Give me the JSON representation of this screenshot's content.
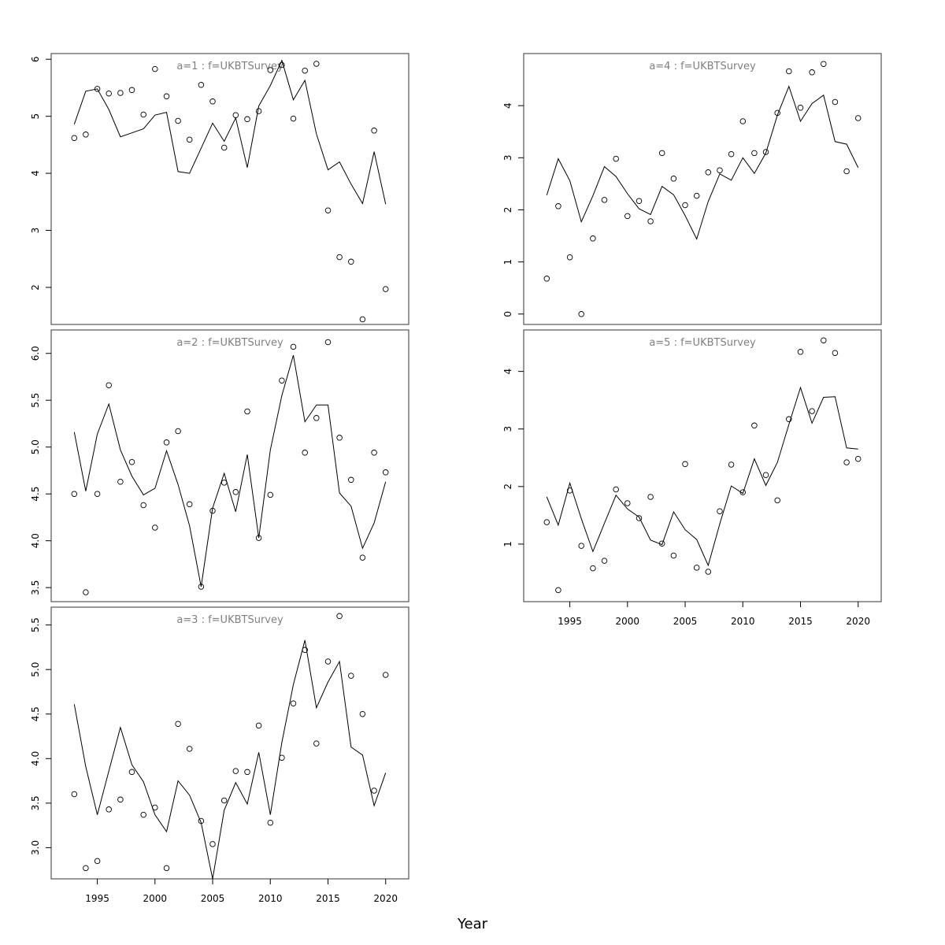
{
  "chart_data": {
    "type": "scatter",
    "xlabel": "Year",
    "years": [
      1993,
      1994,
      1995,
      1996,
      1997,
      1998,
      1999,
      2000,
      2001,
      2002,
      2003,
      2004,
      2005,
      2006,
      2007,
      2008,
      2009,
      2010,
      2011,
      2012,
      2013,
      2014,
      2015,
      2016,
      2017,
      2018,
      2019,
      2020
    ],
    "x_ticks": [
      1995,
      2000,
      2005,
      2010,
      2015,
      2020
    ],
    "xlim": [
      1991,
      2022
    ],
    "panels": [
      {
        "title": "a=1 : f=UKBTSurvey",
        "ylim": [
          1.35,
          6.1
        ],
        "y_ticks": [
          "2",
          "3",
          "4",
          "5",
          "6"
        ],
        "observed": [
          4.62,
          4.68,
          5.48,
          5.4,
          5.41,
          5.46,
          5.03,
          5.83,
          5.35,
          4.92,
          4.59,
          5.55,
          5.26,
          4.45,
          5.02,
          4.95,
          5.09,
          5.81,
          5.9,
          4.96,
          5.8,
          5.92,
          3.35,
          2.53,
          2.45,
          1.44,
          4.75,
          1.97
        ],
        "fitted": [
          4.86,
          5.44,
          5.48,
          5.12,
          4.64,
          4.71,
          4.78,
          5.02,
          5.07,
          4.03,
          4.0,
          4.44,
          4.88,
          4.56,
          4.97,
          4.1,
          5.18,
          5.54,
          5.98,
          5.29,
          5.63,
          4.69,
          4.06,
          4.2,
          3.81,
          3.47,
          4.38,
          3.46
        ]
      },
      {
        "title": "a=2 : f=UKBTSurvey",
        "ylim": [
          3.35,
          6.25
        ],
        "y_ticks": [
          "3.5",
          "4.0",
          "4.5",
          "5.0",
          "5.5",
          "6.0"
        ],
        "observed": [
          4.5,
          3.45,
          4.5,
          5.66,
          4.63,
          4.84,
          4.38,
          4.14,
          5.05,
          5.17,
          4.39,
          3.51,
          4.32,
          4.62,
          4.52,
          5.38,
          4.03,
          4.49,
          5.71,
          6.07,
          4.94,
          5.31,
          6.12,
          5.1,
          4.65,
          3.82,
          4.94,
          4.73
        ],
        "fitted": [
          5.16,
          4.53,
          5.14,
          5.46,
          4.97,
          4.69,
          4.49,
          4.56,
          4.96,
          4.6,
          4.16,
          3.51,
          4.35,
          4.72,
          4.31,
          4.92,
          4.03,
          4.97,
          5.55,
          5.98,
          5.27,
          5.45,
          5.45,
          4.51,
          4.37,
          3.92,
          4.19,
          4.63
        ]
      },
      {
        "title": "a=3 : f=UKBTSurvey",
        "ylim": [
          2.65,
          5.7
        ],
        "y_ticks": [
          "3.0",
          "3.5",
          "4.0",
          "4.5",
          "5.0",
          "5.5"
        ],
        "observed": [
          3.6,
          2.77,
          2.85,
          3.43,
          3.54,
          3.85,
          3.37,
          3.45,
          2.77,
          4.39,
          4.11,
          3.3,
          3.04,
          3.53,
          3.86,
          3.85,
          4.37,
          3.28,
          4.01,
          4.62,
          5.22,
          4.17,
          5.09,
          5.6,
          4.93,
          4.5,
          3.64,
          4.94
        ],
        "fitted": [
          4.61,
          3.91,
          3.37,
          3.86,
          4.35,
          3.93,
          3.74,
          3.37,
          3.18,
          3.75,
          3.59,
          3.28,
          2.65,
          3.42,
          3.73,
          3.49,
          4.07,
          3.37,
          4.18,
          4.83,
          5.33,
          4.57,
          4.86,
          5.09,
          4.13,
          4.04,
          3.47,
          3.84
        ]
      },
      {
        "title": "a=4 : f=UKBTSurvey",
        "ylim": [
          -0.2,
          5.0
        ],
        "y_ticks": [
          "0",
          "1",
          "2",
          "3",
          "4"
        ],
        "observed": [
          0.68,
          2.07,
          1.09,
          0.0,
          1.45,
          2.19,
          2.98,
          1.88,
          2.17,
          1.78,
          3.09,
          2.6,
          2.09,
          2.27,
          2.72,
          2.76,
          3.07,
          3.7,
          3.09,
          3.11,
          3.86,
          4.66,
          3.96,
          4.64,
          4.8,
          4.07,
          2.74,
          3.76
        ],
        "fitted": [
          2.28,
          2.98,
          2.56,
          1.77,
          2.27,
          2.83,
          2.64,
          2.31,
          2.02,
          1.91,
          2.45,
          2.29,
          1.89,
          1.44,
          2.16,
          2.69,
          2.57,
          3.0,
          2.7,
          3.09,
          3.82,
          4.37,
          3.7,
          4.04,
          4.2,
          3.31,
          3.26,
          2.81
        ]
      },
      {
        "title": "a=5 : f=UKBTSurvey",
        "ylim": [
          0.0,
          4.72
        ],
        "y_ticks": [
          "1",
          "2",
          "3",
          "4"
        ],
        "observed": [
          1.38,
          0.2,
          1.93,
          0.97,
          0.58,
          0.71,
          1.95,
          1.71,
          1.45,
          1.82,
          1.01,
          0.8,
          2.39,
          0.59,
          0.52,
          1.57,
          2.38,
          1.9,
          3.06,
          2.2,
          1.76,
          3.17,
          4.34,
          3.31,
          4.54,
          4.32,
          2.42,
          2.48
        ],
        "fitted": [
          1.82,
          1.33,
          2.06,
          1.44,
          0.87,
          1.36,
          1.85,
          1.61,
          1.47,
          1.07,
          0.99,
          1.56,
          1.25,
          1.08,
          0.63,
          1.35,
          2.01,
          1.88,
          2.48,
          2.02,
          2.42,
          3.08,
          3.72,
          3.1,
          3.55,
          3.56,
          2.67,
          2.65
        ]
      }
    ]
  }
}
